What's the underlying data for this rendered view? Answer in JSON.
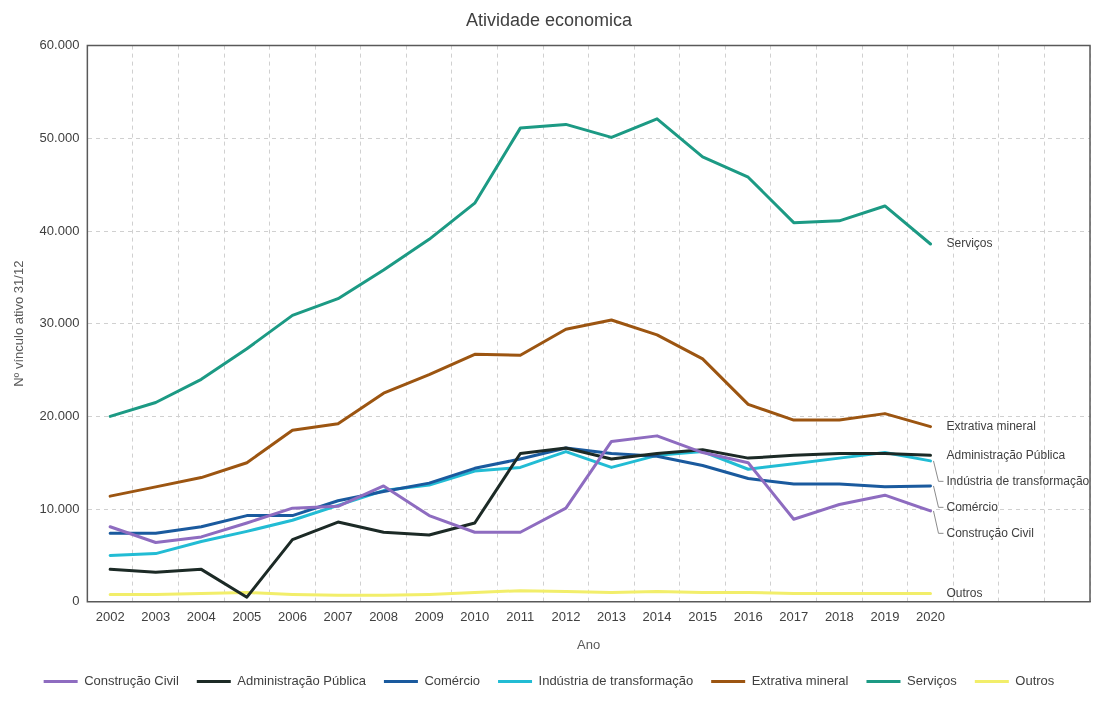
{
  "chart_data": {
    "type": "line",
    "title": "Atividade economica",
    "xlabel": "Ano",
    "ylabel": "Nº vínculo ativo 31/12",
    "categories": [
      "2002",
      "2003",
      "2004",
      "2005",
      "2006",
      "2007",
      "2008",
      "2009",
      "2010",
      "2011",
      "2012",
      "2013",
      "2014",
      "2015",
      "2016",
      "2017",
      "2018",
      "2019",
      "2020",
      null,
      null,
      null
    ],
    "series": [
      {
        "name": "Construção Civil",
        "color": "#8e6cc0",
        "values": [
          8100,
          6400,
          7000,
          8500,
          10100,
          10300,
          12500,
          9300,
          7500,
          7500,
          10100,
          17300,
          17900,
          16100,
          15000,
          8900,
          10500,
          11500,
          9800,
          null,
          null,
          null
        ]
      },
      {
        "name": "Administração Pública",
        "color": "#1c2a26",
        "values": [
          3500,
          3200,
          3500,
          500,
          6700,
          8600,
          7500,
          7200,
          8500,
          16000,
          16600,
          15400,
          16000,
          16400,
          15500,
          15800,
          16000,
          16000,
          15800,
          null,
          null,
          null
        ]
      },
      {
        "name": "Comércio",
        "color": "#1a5a9e",
        "values": [
          7400,
          7400,
          8100,
          9300,
          9300,
          10900,
          11900,
          12800,
          14400,
          15400,
          16600,
          16000,
          15700,
          14700,
          13300,
          12700,
          12700,
          12400,
          12500,
          null,
          null,
          null
        ]
      },
      {
        "name": "Indústria de transformação",
        "color": "#22bcd4",
        "values": [
          5000,
          5200,
          6500,
          7600,
          8800,
          10400,
          12000,
          12600,
          14100,
          14500,
          16200,
          14500,
          15800,
          16200,
          14300,
          14900,
          15500,
          16100,
          15200,
          null,
          null,
          null
        ]
      },
      {
        "name": "Extrativa mineral",
        "color": "#9c5511",
        "values": [
          11400,
          12400,
          13400,
          15000,
          18500,
          19200,
          22500,
          24500,
          26700,
          26600,
          29400,
          30400,
          28800,
          26200,
          21300,
          19600,
          19600,
          20300,
          18900,
          null,
          null,
          null
        ]
      },
      {
        "name": "Serviços",
        "color": "#1c9a84",
        "values": [
          20000,
          21500,
          24000,
          27300,
          30900,
          32700,
          35800,
          39100,
          43000,
          51100,
          51500,
          50100,
          52100,
          48000,
          45800,
          40900,
          41100,
          42700,
          38600,
          null,
          null,
          null
        ]
      },
      {
        "name": "Outros",
        "color": "#f2ee6a",
        "values": [
          800,
          800,
          900,
          1000,
          800,
          700,
          700,
          800,
          1000,
          1200,
          1100,
          1000,
          1100,
          1000,
          1000,
          900,
          900,
          900,
          900,
          null,
          null,
          null
        ]
      }
    ],
    "ylim": [
      0,
      60000
    ],
    "yticks": [
      {
        "value": 0,
        "label": "0"
      },
      {
        "value": 10000,
        "label": "10.000"
      },
      {
        "value": 20000,
        "label": "20.000"
      },
      {
        "value": 30000,
        "label": "30.000"
      },
      {
        "value": 40000,
        "label": "40.000"
      },
      {
        "value": 50000,
        "label": "50.000"
      },
      {
        "value": 60000,
        "label": "60.000"
      }
    ],
    "grid": true,
    "legend": "bottom",
    "marker": "none",
    "line_style": "solid"
  }
}
